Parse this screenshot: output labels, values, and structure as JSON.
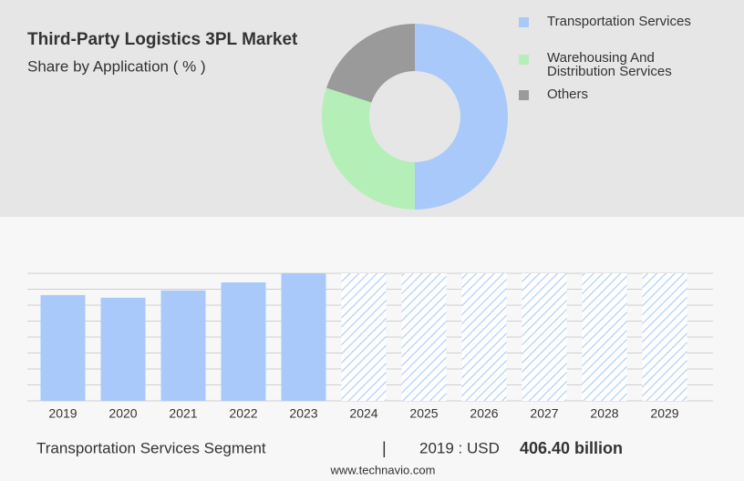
{
  "chart_data": [
    {
      "type": "donut",
      "title": "Third-Party Logistics 3PL Market",
      "subtitle": "Share by Application ( % )",
      "categories": [
        "Transportation Services",
        "Warehousing And Distribution Services",
        "Others"
      ],
      "values": [
        50,
        30,
        20
      ],
      "colors": [
        "#a9c9fb",
        "#b5efb8",
        "#9a9a9a"
      ]
    },
    {
      "type": "bar",
      "categories": [
        "2019",
        "2020",
        "2021",
        "2022",
        "2023",
        "2024",
        "2025",
        "2026",
        "2027",
        "2028",
        "2029"
      ],
      "values": [
        406.4,
        396,
        424,
        455,
        490,
        null,
        null,
        null,
        null,
        null,
        null
      ],
      "color": "#a9c9fb",
      "ylim": [
        0,
        490
      ],
      "yticks": [
        0,
        61.25,
        122.5,
        183.75,
        245,
        306.25,
        367.5,
        428.75,
        490
      ],
      "grid": true
    }
  ],
  "footer": {
    "segment": "Transportation Services Segment",
    "separator": "|",
    "year_prefix": "2019 : USD",
    "value_text": "406.40 billion",
    "source": "www.technavio.com"
  }
}
